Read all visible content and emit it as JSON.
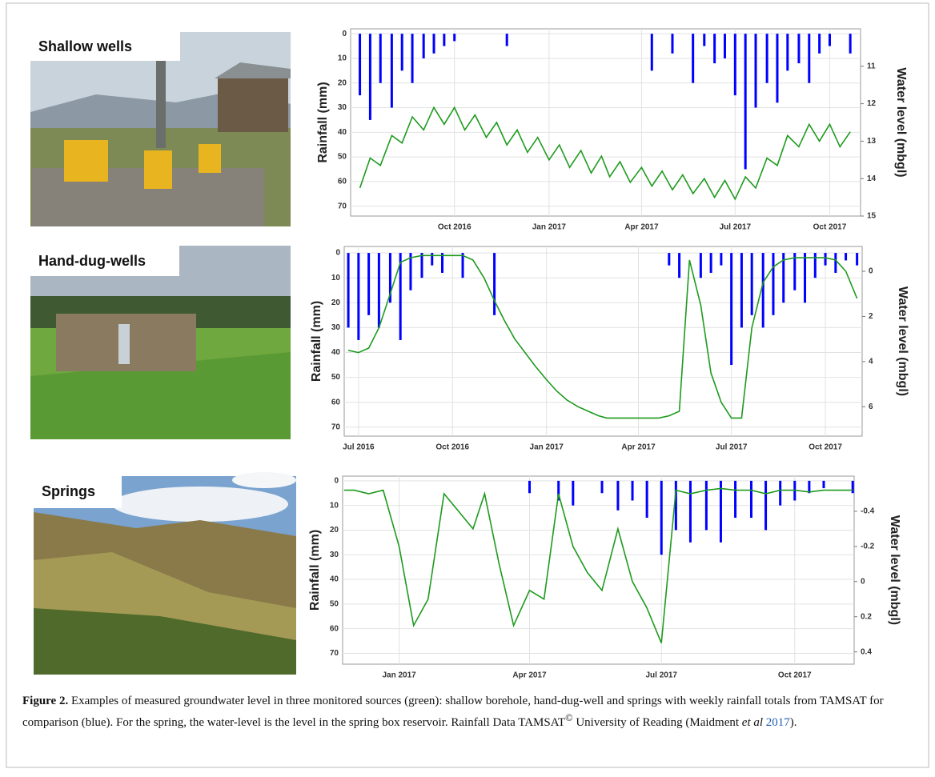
{
  "panels": [
    {
      "label": "Shallow wells"
    },
    {
      "label": "Hand-dug-wells"
    },
    {
      "label": "Springs"
    }
  ],
  "chart_data": [
    {
      "type": "combo",
      "ylabel": "Rainfall (mm)",
      "y2label": "Water level (mbgl)",
      "yinvert": true,
      "grid": true,
      "xlim": [
        "2016-06-22",
        "2017-10-31"
      ],
      "xticks": [
        {
          "value": "2016-10-01",
          "label": "Oct 2016"
        },
        {
          "value": "2017-01-01",
          "label": "Jan 2017"
        },
        {
          "value": "2017-04-01",
          "label": "Apr 2017"
        },
        {
          "value": "2017-07-01",
          "label": "Jul 2017"
        },
        {
          "value": "2017-10-01",
          "label": "Oct 2017"
        }
      ],
      "ylim": [
        -2,
        74
      ],
      "yticks": [
        0,
        10,
        20,
        30,
        40,
        50,
        60,
        70
      ],
      "y2lim": [
        10,
        15
      ],
      "y2ticks": [
        11,
        12,
        13,
        14,
        15
      ],
      "x": [
        "2016-07-01",
        "2016-07-11",
        "2016-07-21",
        "2016-08-01",
        "2016-08-11",
        "2016-08-21",
        "2016-09-01",
        "2016-09-11",
        "2016-09-21",
        "2016-10-01",
        "2016-10-11",
        "2016-10-21",
        "2016-11-01",
        "2016-11-11",
        "2016-11-21",
        "2016-12-01",
        "2016-12-11",
        "2016-12-21",
        "2017-01-01",
        "2017-01-11",
        "2017-01-21",
        "2017-02-01",
        "2017-02-11",
        "2017-02-21",
        "2017-03-01",
        "2017-03-11",
        "2017-03-21",
        "2017-04-01",
        "2017-04-11",
        "2017-04-21",
        "2017-05-01",
        "2017-05-11",
        "2017-05-21",
        "2017-06-01",
        "2017-06-11",
        "2017-06-21",
        "2017-07-01",
        "2017-07-11",
        "2017-07-21",
        "2017-08-01",
        "2017-08-11",
        "2017-08-21",
        "2017-09-01",
        "2017-09-11",
        "2017-09-21",
        "2017-10-01",
        "2017-10-11",
        "2017-10-21"
      ],
      "series": [
        {
          "type": "bar",
          "color": "#0000ff",
          "values": [
            25,
            35,
            20,
            30,
            15,
            20,
            10,
            8,
            5,
            3,
            0,
            0,
            0,
            0,
            5,
            0,
            0,
            0,
            0,
            0,
            0,
            0,
            0,
            0,
            0,
            0,
            0,
            0,
            15,
            0,
            8,
            0,
            20,
            5,
            12,
            10,
            25,
            55,
            30,
            20,
            28,
            15,
            12,
            20,
            8,
            5,
            0,
            8
          ]
        },
        {
          "type": "line",
          "axis": "y2",
          "color": "#1e9a1e",
          "values": [
            14.25,
            13.45,
            13.65,
            12.85,
            13.05,
            12.35,
            12.7,
            12.1,
            12.55,
            12.1,
            12.7,
            12.3,
            12.9,
            12.5,
            13.1,
            12.7,
            13.3,
            12.9,
            13.5,
            13.1,
            13.7,
            13.25,
            13.85,
            13.4,
            13.95,
            13.55,
            14.1,
            13.7,
            14.2,
            13.8,
            14.3,
            13.9,
            14.4,
            14.0,
            14.5,
            14.05,
            14.55,
            13.95,
            14.25,
            13.45,
            13.65,
            12.85,
            13.15,
            12.55,
            13.0,
            12.55,
            13.15,
            12.75
          ]
        }
      ]
    },
    {
      "type": "combo",
      "ylabel": "Rainfall (mm)",
      "y2label": "Water level (mbgl)",
      "yinvert": true,
      "grid": true,
      "xlim": [
        "2016-06-17",
        "2017-11-06"
      ],
      "xticks": [
        {
          "value": "2016-07-01",
          "label": "Jul 2016"
        },
        {
          "value": "2016-10-01",
          "label": "Oct 2016"
        },
        {
          "value": "2017-01-01",
          "label": "Jan 2017"
        },
        {
          "value": "2017-04-01",
          "label": "Apr 2017"
        },
        {
          "value": "2017-07-01",
          "label": "Jul 2017"
        },
        {
          "value": "2017-10-01",
          "label": "Oct 2017"
        }
      ],
      "ylim": [
        -2.6,
        73.6
      ],
      "yticks": [
        0,
        10,
        20,
        30,
        40,
        50,
        60,
        70
      ],
      "y2lim": [
        -1.1,
        7.3
      ],
      "y2ticks": [
        0,
        2,
        4,
        6
      ],
      "x": [
        "2016-06-21",
        "2016-07-01",
        "2016-07-11",
        "2016-07-21",
        "2016-08-01",
        "2016-08-11",
        "2016-08-21",
        "2016-09-01",
        "2016-09-11",
        "2016-09-21",
        "2016-10-01",
        "2016-10-11",
        "2016-10-21",
        "2016-11-01",
        "2016-11-11",
        "2016-11-21",
        "2016-12-01",
        "2016-12-11",
        "2016-12-21",
        "2017-01-01",
        "2017-01-11",
        "2017-01-21",
        "2017-02-01",
        "2017-02-11",
        "2017-02-21",
        "2017-03-01",
        "2017-03-11",
        "2017-03-21",
        "2017-04-01",
        "2017-04-11",
        "2017-04-21",
        "2017-05-01",
        "2017-05-11",
        "2017-05-21",
        "2017-06-01",
        "2017-06-11",
        "2017-06-21",
        "2017-07-01",
        "2017-07-11",
        "2017-07-21",
        "2017-08-01",
        "2017-08-11",
        "2017-08-21",
        "2017-09-01",
        "2017-09-11",
        "2017-09-21",
        "2017-10-01",
        "2017-10-11",
        "2017-10-21",
        "2017-11-01"
      ],
      "series": [
        {
          "type": "bar",
          "color": "#0000ff",
          "values": [
            30,
            35,
            25,
            30,
            20,
            35,
            15,
            10,
            5,
            8,
            0,
            10,
            0,
            0,
            25,
            0,
            0,
            0,
            0,
            0,
            0,
            0,
            0,
            0,
            0,
            0,
            0,
            0,
            0,
            0,
            0,
            5,
            10,
            0,
            10,
            8,
            5,
            45,
            30,
            25,
            30,
            25,
            20,
            15,
            20,
            10,
            5,
            8,
            3,
            5
          ]
        },
        {
          "type": "line",
          "axis": "y2",
          "color": "#1e9a1e",
          "values": [
            3.5,
            3.6,
            3.4,
            2.5,
            1.0,
            -0.4,
            -0.6,
            -0.7,
            -0.7,
            -0.7,
            -0.7,
            -0.7,
            -0.5,
            0.3,
            1.3,
            2.2,
            3.0,
            3.6,
            4.2,
            4.8,
            5.3,
            5.7,
            6.0,
            6.2,
            6.4,
            6.5,
            6.5,
            6.5,
            6.5,
            6.5,
            6.5,
            6.4,
            6.2,
            -0.5,
            1.5,
            4.5,
            5.8,
            6.5,
            6.5,
            2.5,
            0.5,
            -0.2,
            -0.5,
            -0.6,
            -0.6,
            -0.6,
            -0.6,
            -0.5,
            0.0,
            1.2
          ]
        }
      ]
    },
    {
      "type": "combo",
      "ylabel": "Rainfall (mm)",
      "y2label": "Water level (mbgl)",
      "yinvert": true,
      "grid": true,
      "xlim": [
        "2016-11-23",
        "2017-11-11"
      ],
      "xticks": [
        {
          "value": "2017-01-01",
          "label": "Jan 2017"
        },
        {
          "value": "2017-04-01",
          "label": "Apr 2017"
        },
        {
          "value": "2017-07-01",
          "label": "Jul 2017"
        },
        {
          "value": "2017-10-01",
          "label": "Oct 2017"
        }
      ],
      "ylim": [
        -1.9,
        74.4
      ],
      "yticks": [
        0,
        10,
        20,
        30,
        40,
        50,
        60,
        70
      ],
      "y2lim": [
        -0.6,
        0.47
      ],
      "y2ticks": [
        -0.4,
        -0.2,
        0,
        0.2,
        0.4
      ],
      "x": [
        "2016-11-24",
        "2016-12-01",
        "2016-12-11",
        "2016-12-21",
        "2017-01-01",
        "2017-01-11",
        "2017-01-21",
        "2017-02-01",
        "2017-02-11",
        "2017-02-21",
        "2017-03-01",
        "2017-03-11",
        "2017-03-21",
        "2017-04-01",
        "2017-04-11",
        "2017-04-21",
        "2017-05-01",
        "2017-05-11",
        "2017-05-21",
        "2017-06-01",
        "2017-06-11",
        "2017-06-21",
        "2017-07-01",
        "2017-07-11",
        "2017-07-21",
        "2017-08-01",
        "2017-08-11",
        "2017-08-21",
        "2017-09-01",
        "2017-09-11",
        "2017-09-21",
        "2017-10-01",
        "2017-10-11",
        "2017-10-21",
        "2017-11-01",
        "2017-11-10"
      ],
      "series": [
        {
          "type": "bar",
          "color": "#0000ff",
          "values": [
            0,
            0,
            0,
            0,
            0,
            0,
            0,
            0,
            0,
            0,
            0,
            0,
            0,
            5,
            0,
            8,
            10,
            0,
            5,
            12,
            8,
            15,
            30,
            20,
            25,
            20,
            25,
            15,
            15,
            20,
            10,
            8,
            5,
            3,
            0,
            5
          ]
        },
        {
          "type": "line",
          "axis": "y2",
          "color": "#1e9a1e",
          "values": [
            -0.52,
            -0.52,
            -0.5,
            -0.52,
            -0.2,
            0.25,
            0.1,
            -0.5,
            -0.4,
            -0.3,
            -0.5,
            -0.1,
            0.25,
            0.05,
            0.1,
            -0.5,
            -0.2,
            -0.05,
            0.05,
            -0.3,
            0.0,
            0.15,
            0.35,
            -0.52,
            -0.5,
            -0.52,
            -0.53,
            -0.52,
            -0.52,
            -0.5,
            -0.52,
            -0.52,
            -0.51,
            -0.52,
            -0.52,
            -0.52
          ]
        }
      ]
    }
  ],
  "caption": {
    "label": "Figure 2.",
    "text": " Examples of measured groundwater level in three monitored sources (green): shallow borehole, hand-dug-well and springs with weekly rainfall totals from TAMSAT for comparison (blue). For the spring, the water-level is the level in the spring box reservoir. Rainfall Data TAMSAT",
    "sup": "©",
    "text2": " University of Reading (Maidment ",
    "italic": "et al",
    "link": "2017",
    "end": ")."
  }
}
